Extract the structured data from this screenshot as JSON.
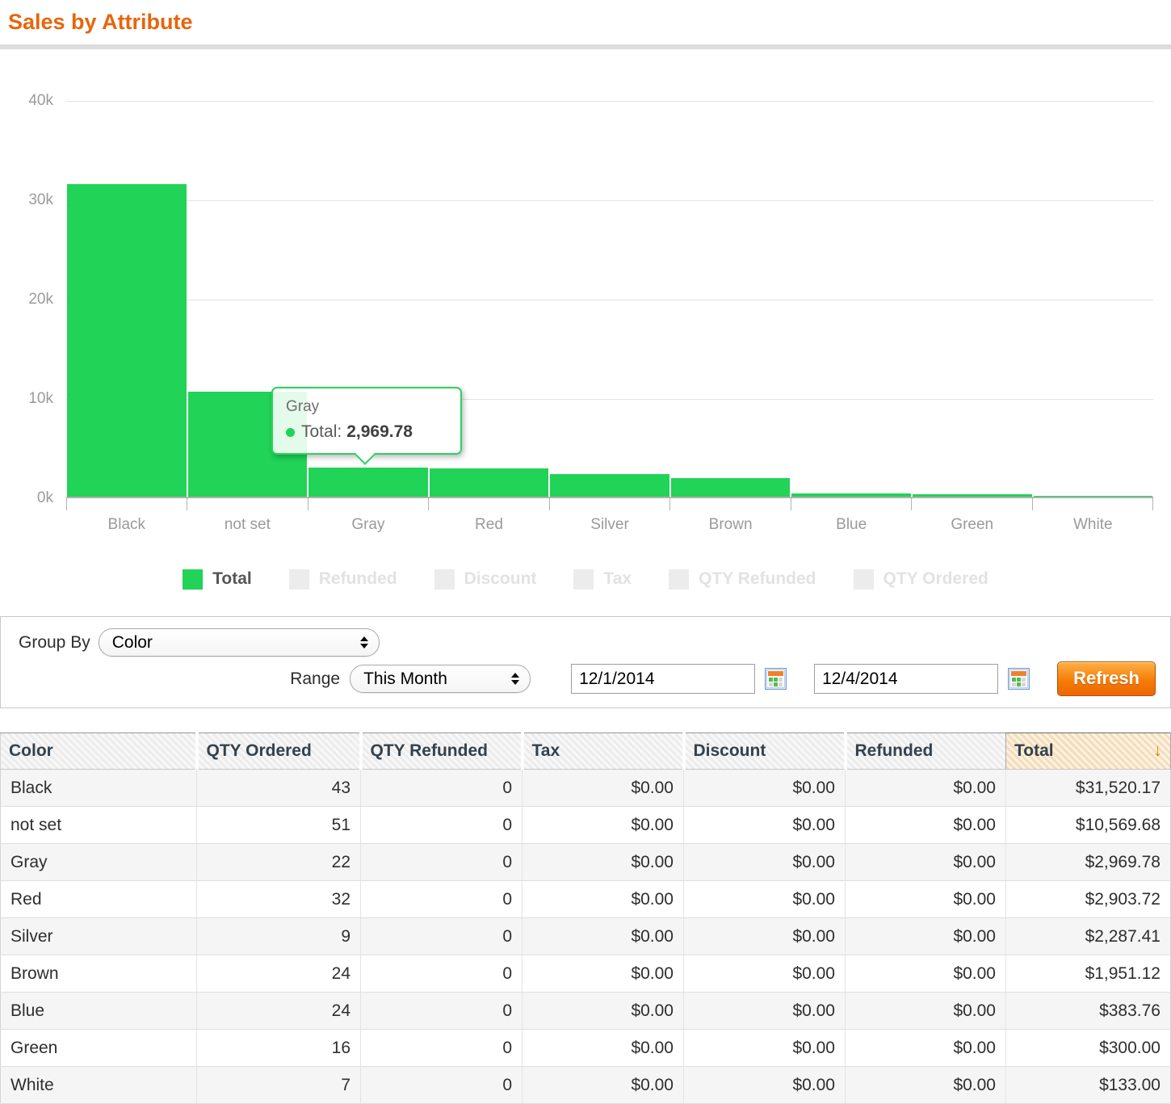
{
  "page": {
    "title": "Sales by Attribute"
  },
  "colors": {
    "accent_orange": "#e8650c",
    "bar_green": "#21d357",
    "inactive_gray": "#ececec",
    "inactive_text": "#e2e2e2"
  },
  "chart_data": {
    "type": "bar",
    "title": "Sales by Attribute",
    "categories": [
      "Black",
      "not set",
      "Gray",
      "Red",
      "Silver",
      "Brown",
      "Blue",
      "Green",
      "White"
    ],
    "series": [
      {
        "name": "Total",
        "values": [
          31520.17,
          10569.68,
          2969.78,
          2903.72,
          2287.41,
          1951.12,
          383.76,
          300.0,
          133.0
        ]
      }
    ],
    "ylim": [
      0,
      40000
    ],
    "ytick_labels": [
      "40k",
      "30k",
      "20k",
      "10k",
      "0k"
    ],
    "grid": "horizontal",
    "legend_position": "bottom-center",
    "legend": [
      {
        "label": "Total",
        "active": true
      },
      {
        "label": "Refunded",
        "active": false
      },
      {
        "label": "Discount",
        "active": false
      },
      {
        "label": "Tax",
        "active": false
      },
      {
        "label": "QTY Refunded",
        "active": false
      },
      {
        "label": "QTY Ordered",
        "active": false
      }
    ],
    "tooltip": {
      "category": "Gray",
      "series_label": "Total:",
      "value": "2,969.78"
    }
  },
  "controls": {
    "group_by_label": "Group By",
    "group_by_value": "Color",
    "range_label": "Range",
    "range_value": "This Month",
    "date_from": "12/1/2014",
    "date_to": "12/4/2014",
    "refresh_label": "Refresh"
  },
  "table": {
    "columns": [
      "Color",
      "QTY Ordered",
      "QTY Refunded",
      "Tax",
      "Discount",
      "Refunded",
      "Total"
    ],
    "sort": {
      "column": "Total",
      "direction": "desc",
      "arrow": "↓"
    },
    "rows": [
      [
        "Black",
        "43",
        "0",
        "$0.00",
        "$0.00",
        "$0.00",
        "$31,520.17"
      ],
      [
        "not set",
        "51",
        "0",
        "$0.00",
        "$0.00",
        "$0.00",
        "$10,569.68"
      ],
      [
        "Gray",
        "22",
        "0",
        "$0.00",
        "$0.00",
        "$0.00",
        "$2,969.78"
      ],
      [
        "Red",
        "32",
        "0",
        "$0.00",
        "$0.00",
        "$0.00",
        "$2,903.72"
      ],
      [
        "Silver",
        "9",
        "0",
        "$0.00",
        "$0.00",
        "$0.00",
        "$2,287.41"
      ],
      [
        "Brown",
        "24",
        "0",
        "$0.00",
        "$0.00",
        "$0.00",
        "$1,951.12"
      ],
      [
        "Blue",
        "24",
        "0",
        "$0.00",
        "$0.00",
        "$0.00",
        "$383.76"
      ],
      [
        "Green",
        "16",
        "0",
        "$0.00",
        "$0.00",
        "$0.00",
        "$300.00"
      ],
      [
        "White",
        "7",
        "0",
        "$0.00",
        "$0.00",
        "$0.00",
        "$133.00"
      ]
    ]
  }
}
